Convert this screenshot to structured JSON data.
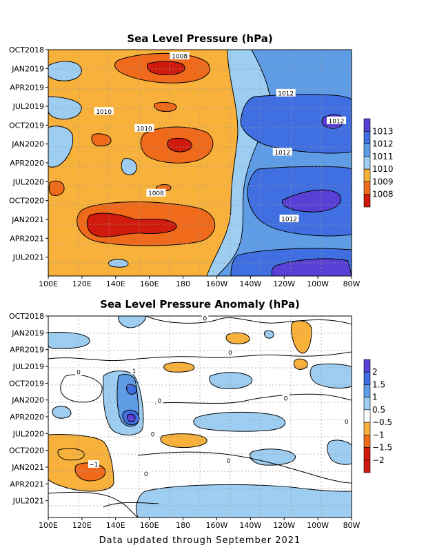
{
  "footer": "Data updated through September 2021",
  "chart_data": [
    {
      "type": "heatmap",
      "title": "Sea Level Pressure (hPa)",
      "x_ticks": [
        "100E",
        "120E",
        "140E",
        "160E",
        "180",
        "160W",
        "140W",
        "120W",
        "100W",
        "80W"
      ],
      "y_ticks": [
        "OCT2018",
        "JAN2019",
        "APR2019",
        "JUL2019",
        "OCT2019",
        "JAN2020",
        "APR2020",
        "JUL2020",
        "OCT2020",
        "JAN2021",
        "APR2021",
        "JUL2021"
      ],
      "grid": true,
      "legend": "right",
      "colorbar": {
        "labels": [
          "1013",
          "1012",
          "1011",
          "1010",
          "1009",
          "1008"
        ],
        "colors": [
          "#5a3fd6",
          "#3f6fe0",
          "#5f9ce6",
          "#9ecdf2",
          "#f8b13a",
          "#ef6a1b",
          "#d11a0e"
        ]
      },
      "contour_labels": [
        {
          "text": "1008",
          "lon": 178,
          "t": 1.0
        },
        {
          "text": "1012",
          "lon": 241,
          "t": 6.9
        },
        {
          "text": "1010",
          "lon": 133,
          "t": 9.8
        },
        {
          "text": "1012",
          "lon": 271,
          "t": 11.3
        },
        {
          "text": "1010",
          "lon": 157,
          "t": 12.5
        },
        {
          "text": "1012",
          "lon": 239,
          "t": 16.3
        },
        {
          "text": "1008",
          "lon": 164,
          "t": 22.8
        },
        {
          "text": "1012",
          "lon": 243,
          "t": 26.9
        }
      ]
    },
    {
      "type": "heatmap",
      "title": "Sea Level Pressure Anomaly (hPa)",
      "x_ticks": [
        "100E",
        "120E",
        "140E",
        "160E",
        "180",
        "160W",
        "140W",
        "120W",
        "100W",
        "80W"
      ],
      "y_ticks": [
        "OCT2018",
        "JAN2019",
        "APR2019",
        "JUL2019",
        "OCT2019",
        "JAN2020",
        "APR2020",
        "JUL2020",
        "OCT2020",
        "JAN2021",
        "APR2021",
        "JUL2021"
      ],
      "grid": true,
      "legend": "right",
      "colorbar": {
        "labels": [
          "2",
          "1.5",
          "1",
          "0.5",
          "−0.5",
          "−1",
          "−1.5",
          "−2"
        ],
        "colors": [
          "#5a3fd6",
          "#3f6fe0",
          "#5f9ce6",
          "#9ecdf2",
          "#ffffff",
          "#f8b13a",
          "#ef6a1b",
          "#d11a0e",
          "#ce1a10"
        ]
      },
      "contour_labels": [
        {
          "text": "0",
          "lon": 193,
          "t": 0.4
        },
        {
          "text": "0",
          "lon": 208,
          "t": 6.5
        },
        {
          "text": "0",
          "lon": 118,
          "t": 10.0
        },
        {
          "text": "1",
          "lon": 151,
          "t": 9.8
        },
        {
          "text": "0",
          "lon": 241,
          "t": 14.7
        },
        {
          "text": "0",
          "lon": 166,
          "t": 15.1
        },
        {
          "text": "0",
          "lon": 277,
          "t": 18.8
        },
        {
          "text": "0",
          "lon": 162,
          "t": 21.1
        },
        {
          "text": "0",
          "lon": 207,
          "t": 25.8
        },
        {
          "text": "−1",
          "lon": 127,
          "t": 26.5
        },
        {
          "text": "0",
          "lon": 158,
          "t": 28.2
        }
      ]
    }
  ]
}
